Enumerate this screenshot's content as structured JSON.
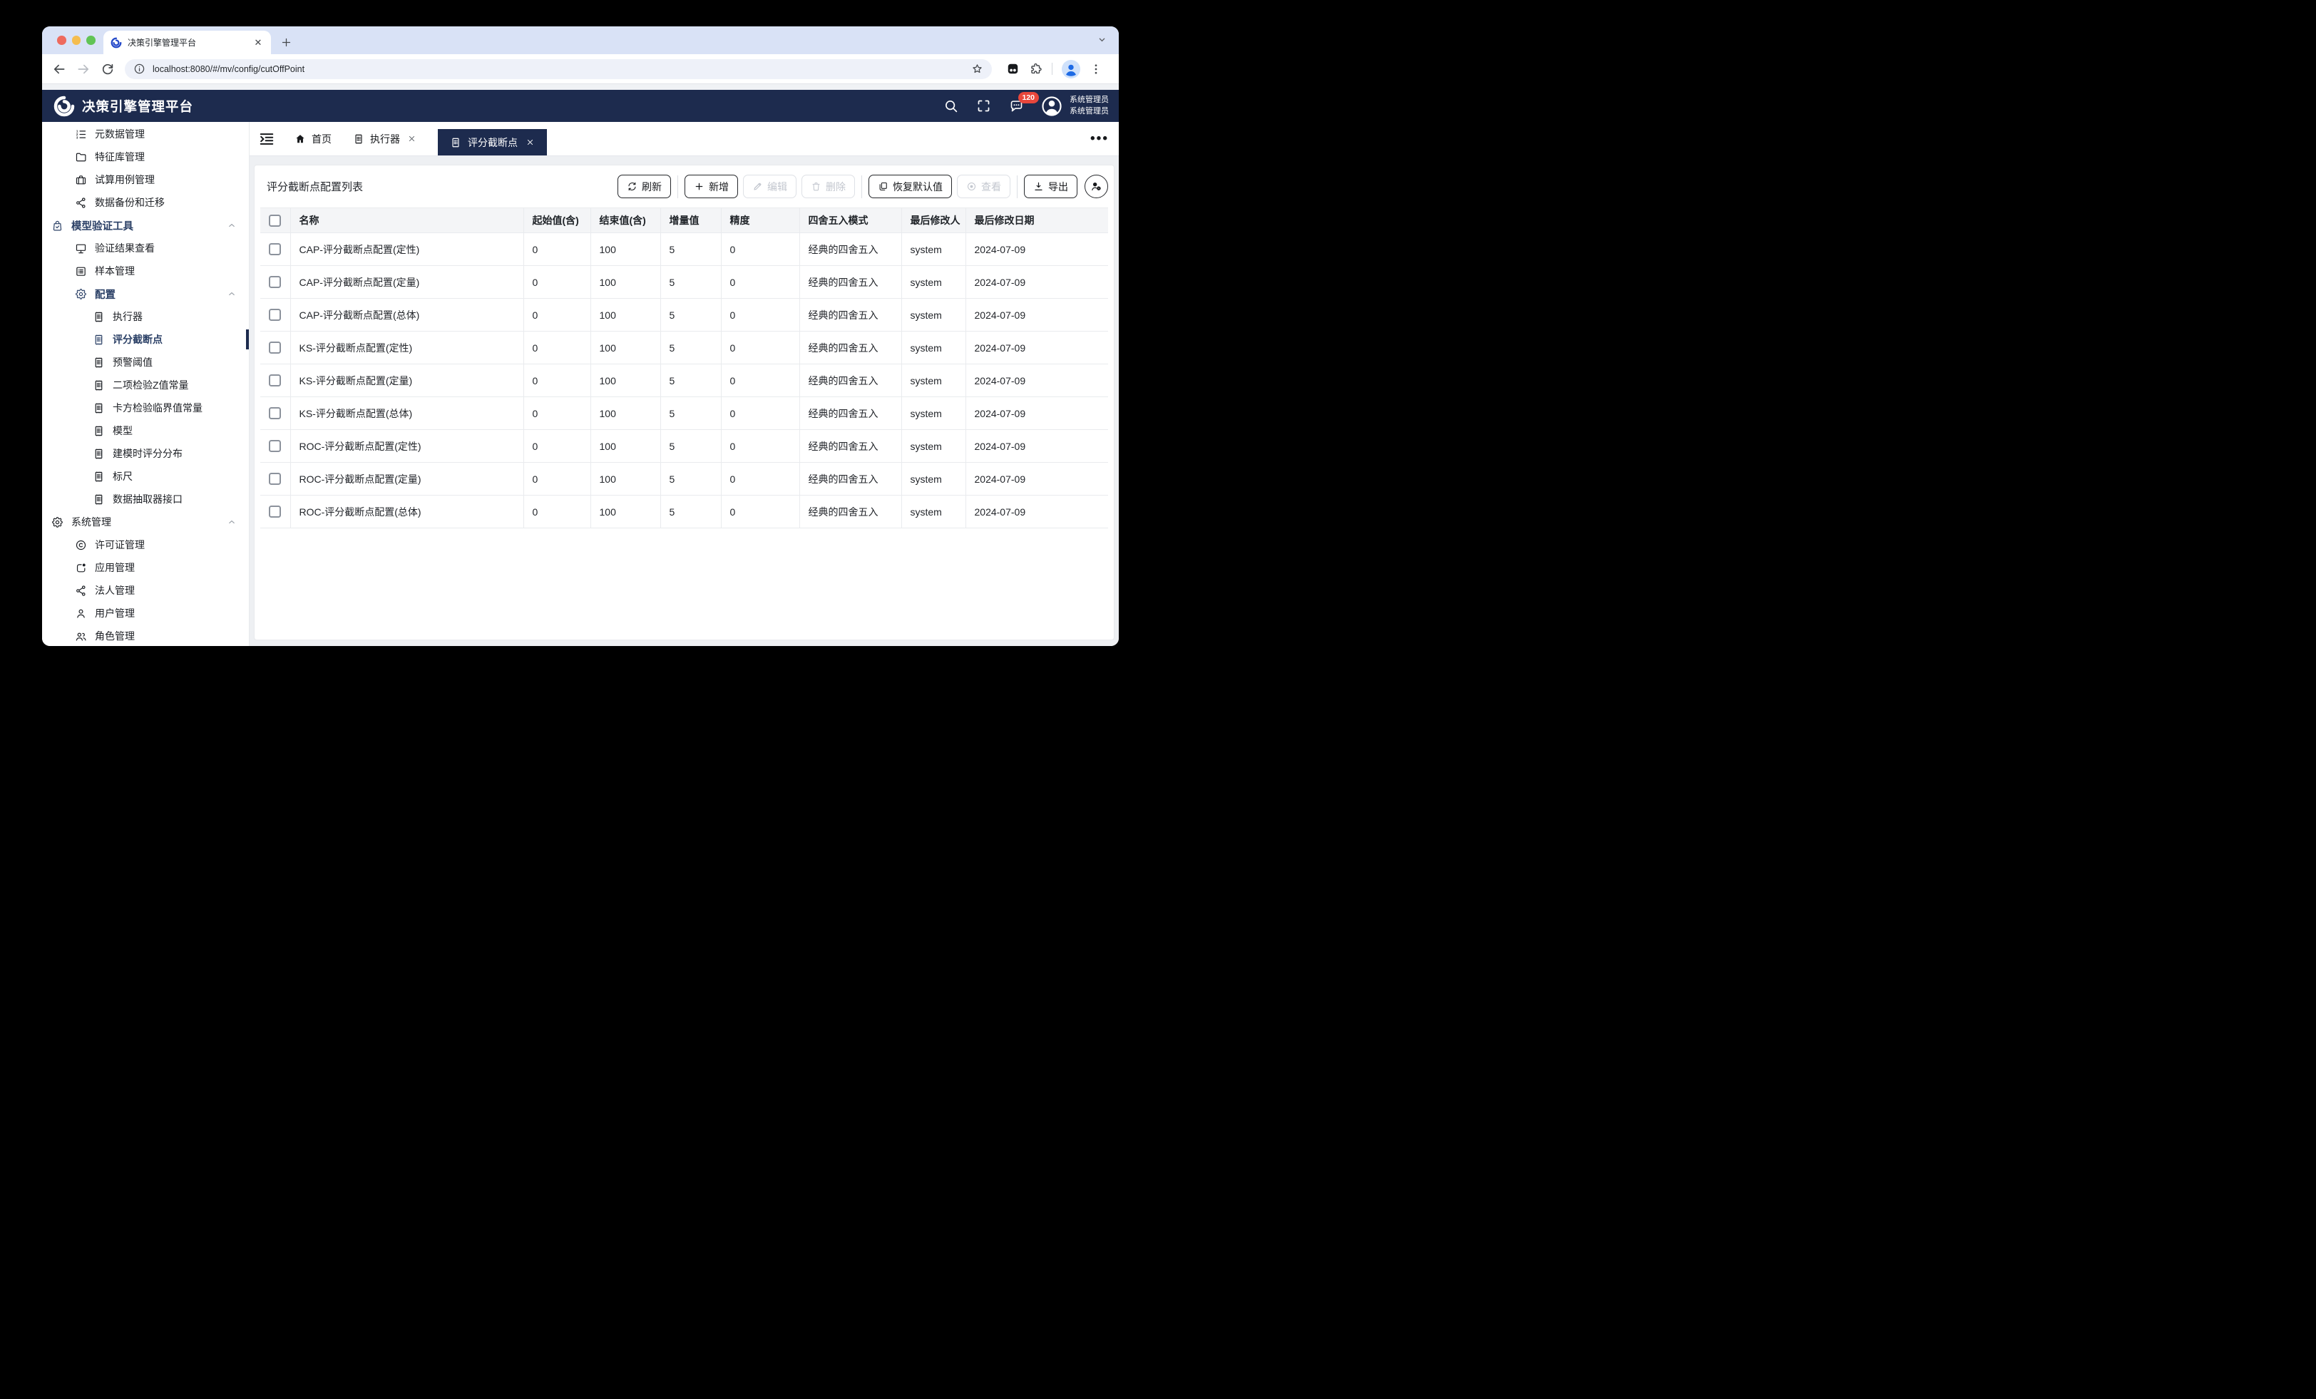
{
  "browser": {
    "tab_title": "决策引擎管理平台",
    "url": "localhost:8080/#/mv/config/cutOffPoint"
  },
  "header": {
    "app_title": "决策引擎管理平台",
    "badge_count": "120",
    "user_name": "系统管理员",
    "user_role": "系统管理员"
  },
  "sidebar": {
    "items": [
      {
        "key": "metadata-management",
        "label": "元数据管理",
        "icon": "numbered-list",
        "level": 2
      },
      {
        "key": "feature-library-management",
        "label": "特征库管理",
        "icon": "folder",
        "level": 2
      },
      {
        "key": "trial-case-management",
        "label": "试算用例管理",
        "icon": "briefcase",
        "level": 2
      },
      {
        "key": "data-backup-migration",
        "label": "数据备份和迁移",
        "icon": "share",
        "level": 2
      },
      {
        "key": "model-validation-tools",
        "label": "模型验证工具",
        "icon": "bag-check",
        "level": 1,
        "bold": true,
        "chevron": "up"
      },
      {
        "key": "validation-result-view",
        "label": "验证结果查看",
        "icon": "monitor",
        "level": 2
      },
      {
        "key": "sample-management",
        "label": "样本管理",
        "icon": "list-square",
        "level": 2
      },
      {
        "key": "configuration",
        "label": "配置",
        "icon": "gear",
        "level": 2,
        "bold": true,
        "chevron": "up"
      },
      {
        "key": "executor",
        "label": "执行器",
        "icon": "receipt",
        "level": 3
      },
      {
        "key": "score-cutoff-point",
        "label": "评分截断点",
        "icon": "receipt",
        "level": 3,
        "active": true
      },
      {
        "key": "warning-threshold",
        "label": "预警阈值",
        "icon": "receipt",
        "level": 3
      },
      {
        "key": "binomial-z-constant",
        "label": "二项检验Z值常量",
        "icon": "receipt",
        "level": 3
      },
      {
        "key": "chi-square-critical-constant",
        "label": "卡方检验临界值常量",
        "icon": "receipt",
        "level": 3
      },
      {
        "key": "model",
        "label": "模型",
        "icon": "receipt",
        "level": 3
      },
      {
        "key": "modeling-score-distribution",
        "label": "建模时评分分布",
        "icon": "receipt",
        "level": 3
      },
      {
        "key": "ruler",
        "label": "标尺",
        "icon": "receipt",
        "level": 3
      },
      {
        "key": "data-extractor-interface",
        "label": "数据抽取器接口",
        "icon": "receipt",
        "level": 3
      },
      {
        "key": "system-management",
        "label": "系统管理",
        "icon": "gear",
        "level": 1,
        "chevron": "up"
      },
      {
        "key": "license-management",
        "label": "许可证管理",
        "icon": "copyright",
        "level": 2
      },
      {
        "key": "application-management",
        "label": "应用管理",
        "icon": "app",
        "level": 2
      },
      {
        "key": "legal-entity-management",
        "label": "法人管理",
        "icon": "share",
        "level": 2
      },
      {
        "key": "user-management",
        "label": "用户管理",
        "icon": "person",
        "level": 2
      },
      {
        "key": "role-management",
        "label": "角色管理",
        "icon": "people",
        "level": 2
      }
    ]
  },
  "tabs": {
    "items": [
      {
        "key": "home",
        "label": "首页",
        "icon": "home",
        "closable": false
      },
      {
        "key": "executor",
        "label": "执行器",
        "icon": "receipt",
        "closable": true
      },
      {
        "key": "score-cutoff-point",
        "label": "评分截断点",
        "icon": "receipt",
        "closable": true,
        "active": true
      }
    ]
  },
  "page": {
    "title": "评分截断点配置列表",
    "toolbar": [
      {
        "key": "refresh",
        "label": "刷新",
        "icon": "refresh",
        "enabled": true,
        "divider_after": true
      },
      {
        "key": "add",
        "label": "新增",
        "icon": "plus",
        "enabled": true
      },
      {
        "key": "edit",
        "label": "编辑",
        "icon": "edit",
        "enabled": false
      },
      {
        "key": "delete",
        "label": "删除",
        "icon": "trash",
        "enabled": false,
        "divider_after": true
      },
      {
        "key": "restore-defaults",
        "label": "恢复默认值",
        "icon": "restore",
        "enabled": true
      },
      {
        "key": "view",
        "label": "查看",
        "icon": "view",
        "enabled": false,
        "divider_after": true
      },
      {
        "key": "export",
        "label": "导出",
        "icon": "export",
        "enabled": true
      }
    ]
  },
  "table": {
    "columns": [
      "名称",
      "起始值(含)",
      "结束值(含)",
      "增量值",
      "精度",
      "四舍五入模式",
      "最后修改人",
      "最后修改日期"
    ],
    "rows": [
      {
        "name": "CAP-评分截断点配置(定性)",
        "start": "0",
        "end": "100",
        "increment": "5",
        "precision": "0",
        "mode": "经典的四舍五入",
        "modified_by": "system",
        "modified_date": "2024-07-09"
      },
      {
        "name": "CAP-评分截断点配置(定量)",
        "start": "0",
        "end": "100",
        "increment": "5",
        "precision": "0",
        "mode": "经典的四舍五入",
        "modified_by": "system",
        "modified_date": "2024-07-09"
      },
      {
        "name": "CAP-评分截断点配置(总体)",
        "start": "0",
        "end": "100",
        "increment": "5",
        "precision": "0",
        "mode": "经典的四舍五入",
        "modified_by": "system",
        "modified_date": "2024-07-09"
      },
      {
        "name": "KS-评分截断点配置(定性)",
        "start": "0",
        "end": "100",
        "increment": "5",
        "precision": "0",
        "mode": "经典的四舍五入",
        "modified_by": "system",
        "modified_date": "2024-07-09"
      },
      {
        "name": "KS-评分截断点配置(定量)",
        "start": "0",
        "end": "100",
        "increment": "5",
        "precision": "0",
        "mode": "经典的四舍五入",
        "modified_by": "system",
        "modified_date": "2024-07-09"
      },
      {
        "name": "KS-评分截断点配置(总体)",
        "start": "0",
        "end": "100",
        "increment": "5",
        "precision": "0",
        "mode": "经典的四舍五入",
        "modified_by": "system",
        "modified_date": "2024-07-09"
      },
      {
        "name": "ROC-评分截断点配置(定性)",
        "start": "0",
        "end": "100",
        "increment": "5",
        "precision": "0",
        "mode": "经典的四舍五入",
        "modified_by": "system",
        "modified_date": "2024-07-09"
      },
      {
        "name": "ROC-评分截断点配置(定量)",
        "start": "0",
        "end": "100",
        "increment": "5",
        "precision": "0",
        "mode": "经典的四舍五入",
        "modified_by": "system",
        "modified_date": "2024-07-09"
      },
      {
        "name": "ROC-评分截断点配置(总体)",
        "start": "0",
        "end": "100",
        "increment": "5",
        "precision": "0",
        "mode": "经典的四舍五入",
        "modified_by": "system",
        "modified_date": "2024-07-09"
      }
    ]
  }
}
